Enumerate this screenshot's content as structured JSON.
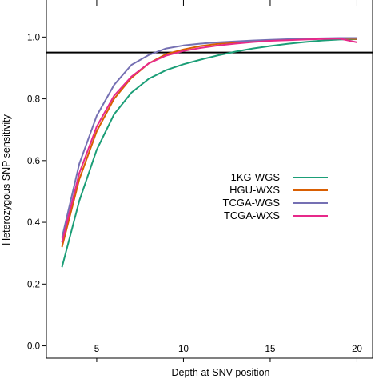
{
  "chart_data": {
    "type": "line",
    "xlabel": "Depth at SNV position",
    "ylabel": "Heterozygous SNP sensitivity",
    "xlim": [
      2.1,
      20.9
    ],
    "ylim": [
      -0.04,
      1.12
    ],
    "xticks": [
      5,
      10,
      15,
      20
    ],
    "yticks": [
      0.0,
      0.2,
      0.4,
      0.6,
      0.8,
      1.0
    ],
    "xtick_labels": [
      "5",
      "10",
      "15",
      "20"
    ],
    "ytick_labels": [
      "0.0",
      "0.2",
      "0.4",
      "0.6",
      "0.8",
      "1.0"
    ],
    "grid": false,
    "legend_position": "center-right",
    "reference_line": {
      "y": 0.95,
      "color": "#000000"
    },
    "x": [
      3,
      4,
      5,
      6,
      7,
      8,
      9,
      10,
      11,
      12,
      13,
      14,
      15,
      16,
      17,
      18,
      19,
      20
    ],
    "series": [
      {
        "name": "1KG-WGS",
        "color": "#1b9e77",
        "values": [
          0.255,
          0.47,
          0.635,
          0.75,
          0.82,
          0.865,
          0.893,
          0.912,
          0.927,
          0.941,
          0.953,
          0.963,
          0.971,
          0.978,
          0.984,
          0.989,
          0.992,
          0.993
        ]
      },
      {
        "name": "HGU-WXS",
        "color": "#d95f02",
        "values": [
          0.32,
          0.54,
          0.695,
          0.8,
          0.868,
          0.915,
          0.945,
          0.96,
          0.971,
          0.978,
          0.983,
          0.986,
          0.989,
          0.991,
          0.993,
          0.995,
          0.996,
          0.994
        ]
      },
      {
        "name": "TCGA-WGS",
        "color": "#7570b3",
        "values": [
          0.35,
          0.59,
          0.745,
          0.845,
          0.91,
          0.942,
          0.963,
          0.973,
          0.979,
          0.983,
          0.986,
          0.989,
          0.991,
          0.993,
          0.995,
          0.996,
          0.997,
          0.997
        ]
      },
      {
        "name": "TCGA-WXS",
        "color": "#e7298a",
        "values": [
          0.335,
          0.56,
          0.71,
          0.81,
          0.872,
          0.915,
          0.94,
          0.955,
          0.965,
          0.973,
          0.979,
          0.984,
          0.988,
          0.99,
          0.992,
          0.994,
          0.995,
          0.983
        ]
      }
    ]
  }
}
